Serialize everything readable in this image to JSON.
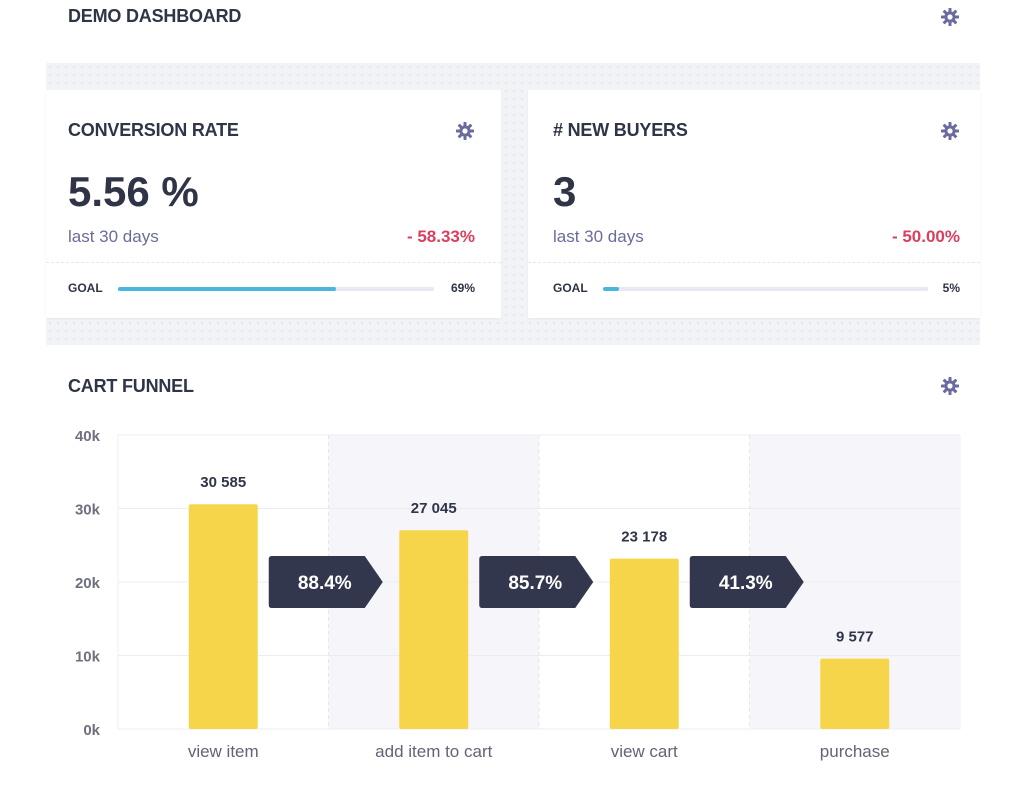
{
  "header": {
    "title": "DEMO DASHBOARD",
    "settings_icon": "gear-icon"
  },
  "cards": [
    {
      "title": "CONVERSION RATE",
      "value": "5.56 %",
      "period": "last 30 days",
      "delta": "- 58.33%",
      "goal_label": "GOAL",
      "goal_progress": 69,
      "goal_percent_text": "69%"
    },
    {
      "title": "# NEW BUYERS",
      "value": "3",
      "period": "last 30 days",
      "delta": "- 50.00%",
      "goal_label": "GOAL",
      "goal_progress": 5,
      "goal_percent_text": "5%"
    }
  ],
  "funnel": {
    "title": "CART FUNNEL"
  },
  "colors": {
    "bar": "#f7d54a",
    "arrow": "#32374d",
    "delta_negative": "#d9405e",
    "goal_fill": "#4bb6db",
    "gear": "#6b6ba0"
  },
  "chart_data": {
    "type": "bar",
    "title": "CART FUNNEL",
    "categories": [
      "view item",
      "add item to cart",
      "view cart",
      "purchase"
    ],
    "values": [
      30585,
      27045,
      23178,
      9577
    ],
    "value_labels": [
      "30 585",
      "27 045",
      "23 178",
      "9 577"
    ],
    "conversion_labels": [
      "88.4%",
      "85.7%",
      "41.3%"
    ],
    "yticks": [
      0,
      10000,
      20000,
      30000,
      40000
    ],
    "ytick_labels": [
      "0k",
      "10k",
      "20k",
      "30k",
      "40k"
    ],
    "ylim": [
      0,
      40000
    ],
    "xlabel": "",
    "ylabel": "",
    "grid": true
  }
}
